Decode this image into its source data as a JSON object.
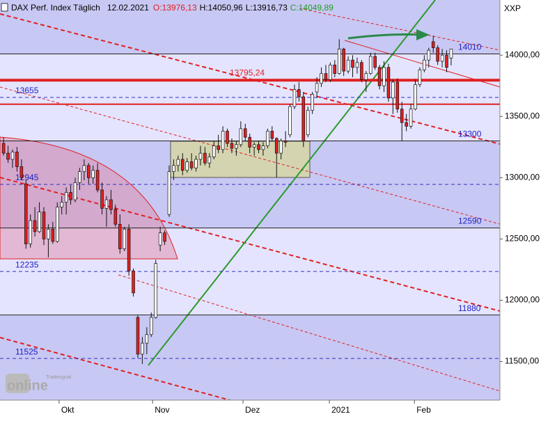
{
  "chart_data": {
    "type": "candlestick",
    "header": {
      "name": "DAX Perf. Index Täglich",
      "date": "12.02.2021",
      "open": "O:13976,13",
      "high": "H:14050,96",
      "low": "L:13916,73",
      "close": "C:14049,89"
    },
    "symbol": "XXP",
    "watermark": {
      "small": "Tradesignal",
      "big": "online"
    },
    "up_color": "#ffffff",
    "down_color": "#e02020",
    "xlim": [
      -0.8,
      110.9
    ],
    "xticks": [
      {
        "value": 12.4,
        "label": "Okt"
      },
      {
        "value": 33.3,
        "label": "Nov"
      },
      {
        "value": 53.5,
        "label": "Dez"
      },
      {
        "value": 72.8,
        "label": "2021"
      },
      {
        "value": 91.8,
        "label": "Feb"
      }
    ],
    "ylim": [
      11185,
      14450
    ],
    "yticks": [
      {
        "value": 11500,
        "label": "11500,00"
      },
      {
        "value": 12000,
        "label": "12000,00"
      },
      {
        "value": 12500,
        "label": "12500,00"
      },
      {
        "value": 13000,
        "label": "13000,00"
      },
      {
        "value": 13500,
        "label": "13500,00"
      },
      {
        "value": 14000,
        "label": "14000,00"
      }
    ],
    "black_levels": [
      14010,
      13300,
      12590,
      11880
    ],
    "blue_levels": [
      13655,
      12945,
      12235,
      11525
    ],
    "red_levels": [
      {
        "value": 13795.24,
        "label": "13795,24"
      },
      {
        "value": 13600,
        "label": null
      }
    ],
    "open": [
      13280,
      13200,
      13150,
      13210,
      13090,
      12950,
      12460,
      12650,
      12560,
      12720,
      12500,
      12580,
      12480,
      12760,
      12800,
      12880,
      12820,
      12960,
      13050,
      13100,
      13000,
      13060,
      12900,
      12750,
      12820,
      12740,
      12620,
      12420,
      12580,
      12240,
      11860,
      11560,
      11650,
      11720,
      11860,
      12450,
      12550,
      12700,
      13050,
      13100,
      13150,
      13060,
      13130,
      13080,
      13150,
      13200,
      13120,
      13170,
      13260,
      13230,
      13380,
      13280,
      13240,
      13270,
      13400,
      13330,
      13250,
      13270,
      13230,
      13260,
      13380,
      13320,
      13200,
      13300,
      13350,
      13580,
      13720,
      13660,
      13350,
      13550,
      13700,
      13770,
      13850,
      13800,
      13920,
      13850,
      14050,
      13870,
      13960,
      13900,
      13940,
      13800,
      13850,
      13990,
      13900,
      13750,
      13900,
      13650,
      13780,
      13560,
      13450,
      13420,
      13560,
      13760,
      13880,
      13960,
      14110,
      14060,
      13950,
      14000,
      13976.13
    ],
    "high": [
      13330,
      13260,
      13230,
      13250,
      13150,
      12980,
      12700,
      12760,
      12800,
      12760,
      12620,
      12640,
      12800,
      12850,
      12920,
      12940,
      13000,
      13080,
      13150,
      13120,
      13100,
      13120,
      12960,
      12850,
      12900,
      12780,
      12700,
      12600,
      12620,
      12260,
      11880,
      11700,
      11780,
      11900,
      12330,
      12600,
      12570,
      13100,
      13150,
      13180,
      13200,
      13160,
      13200,
      13180,
      13260,
      13250,
      13200,
      13300,
      13350,
      13420,
      13400,
      13320,
      13300,
      13460,
      13440,
      13360,
      13290,
      13300,
      13290,
      13400,
      13420,
      13330,
      13320,
      13380,
      13600,
      13760,
      13780,
      13700,
      13580,
      13700,
      13820,
      13900,
      13920,
      13940,
      13960,
      14130,
      14060,
      13990,
      14000,
      13980,
      13960,
      13870,
      14020,
      14020,
      13920,
      13950,
      13930,
      13800,
      13810,
      13620,
      13520,
      13600,
      13800,
      13900,
      14000,
      14060,
      14160,
      14080,
      14050,
      14040,
      14050.96
    ],
    "low": [
      13180,
      13120,
      13080,
      13050,
      12980,
      12420,
      12430,
      12520,
      12550,
      12450,
      12350,
      12460,
      12470,
      12700,
      12700,
      12780,
      12800,
      12900,
      12980,
      12950,
      12950,
      12880,
      12700,
      12600,
      12700,
      12600,
      12380,
      12400,
      12200,
      12030,
      11530,
      11480,
      11560,
      11700,
      11850,
      12400,
      12450,
      12680,
      12980,
      13050,
      13020,
      13040,
      13060,
      13050,
      13100,
      13100,
      13080,
      13150,
      13200,
      13200,
      13250,
      13200,
      13180,
      13250,
      13300,
      13200,
      13180,
      13200,
      13180,
      13240,
      13300,
      13000,
      13150,
      13250,
      13330,
      13560,
      13620,
      13250,
      13330,
      13520,
      13650,
      13740,
      13780,
      13780,
      13820,
      13840,
      13830,
      13850,
      13820,
      13850,
      13780,
      13700,
      13840,
      13880,
      13720,
      13700,
      13620,
      13520,
      13530,
      13300,
      13380,
      13400,
      13550,
      13740,
      13860,
      13900,
      14020,
      13920,
      13900,
      13860,
      13916.73
    ],
    "close": [
      13200,
      13150,
      13210,
      13090,
      13000,
      12460,
      12650,
      12560,
      12720,
      12500,
      12580,
      12480,
      12760,
      12800,
      12880,
      12820,
      12960,
      13050,
      13100,
      13000,
      13060,
      12900,
      12750,
      12820,
      12740,
      12620,
      12420,
      12580,
      12240,
      12060,
      11560,
      11650,
      11720,
      11860,
      12300,
      12550,
      12480,
      13050,
      13100,
      13150,
      13060,
      13130,
      13080,
      13150,
      13200,
      13120,
      13170,
      13260,
      13230,
      13380,
      13280,
      13240,
      13270,
      13400,
      13330,
      13250,
      13270,
      13230,
      13260,
      13380,
      13320,
      13200,
      13300,
      13290,
      13580,
      13720,
      13660,
      13300,
      13550,
      13680,
      13770,
      13850,
      13800,
      13920,
      13850,
      14050,
      13870,
      13960,
      13900,
      13940,
      13800,
      13850,
      13990,
      13900,
      13750,
      13900,
      13650,
      13780,
      13560,
      13450,
      13420,
      13560,
      13760,
      13880,
      13960,
      14040,
      14060,
      13950,
      14000,
      13900,
      14049.89
    ]
  }
}
